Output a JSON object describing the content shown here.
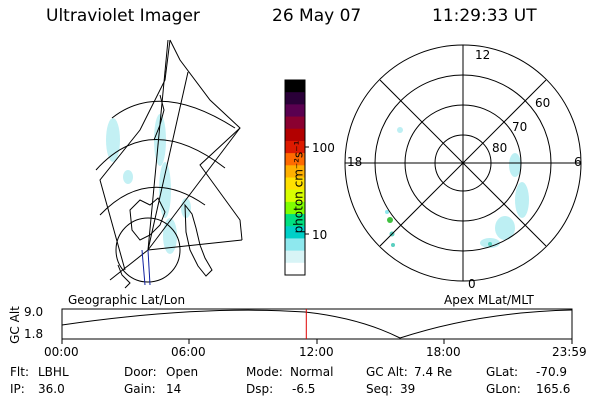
{
  "header": {
    "instrument": "Ultraviolet Imager",
    "date": "26 May 07",
    "time": "11:29:33 UT"
  },
  "colorbar": {
    "label": "photon cm⁻²s⁻¹",
    "ticks": [
      "100",
      "10"
    ],
    "colors": [
      "#000000",
      "#2a0038",
      "#5a0050",
      "#8a0030",
      "#b20000",
      "#dd1a00",
      "#ff6a00",
      "#ffb000",
      "#ffe000",
      "#d8ff00",
      "#80ff00",
      "#00e080",
      "#00d0c8",
      "#8ee8ee",
      "#d8f4f6",
      "#ffffff"
    ]
  },
  "panels": {
    "left_label": "Geographic Lat/Lon",
    "right_label": "Apex MLat/MLT",
    "polar_labels": {
      "mlt_top": "12",
      "mlt_left": "18",
      "mlt_right": "6",
      "mlt_bottom": "0",
      "lat_60": "60",
      "lat_70": "70",
      "lat_80": "80"
    }
  },
  "altitude_plot": {
    "axis_label": "GC Alt",
    "y_ticks": [
      "9.0",
      "1.8"
    ],
    "x_ticks": [
      "00:00",
      "06:00",
      "12:00",
      "18:00",
      "23:59"
    ],
    "marker_time_fraction": 0.479
  },
  "info": {
    "flt_label": "Flt:",
    "flt_value": "LBHL",
    "ip_label": "IP:",
    "ip_value": "36.0",
    "door_label": "Door:",
    "door_value": "Open",
    "gain_label": "Gain:",
    "gain_value": "14",
    "mode_label": "Mode:",
    "mode_value": "Normal",
    "dsp_label": "Dsp:",
    "dsp_value": "-6.5",
    "gcalt_label": "GC Alt:",
    "gcalt_value": "7.4 Re",
    "seq_label": "Seq:",
    "seq_value": "39",
    "glat_label": "GLat:",
    "glat_value": "-70.9",
    "glon_label": "GLon:",
    "glon_value": "165.6"
  }
}
